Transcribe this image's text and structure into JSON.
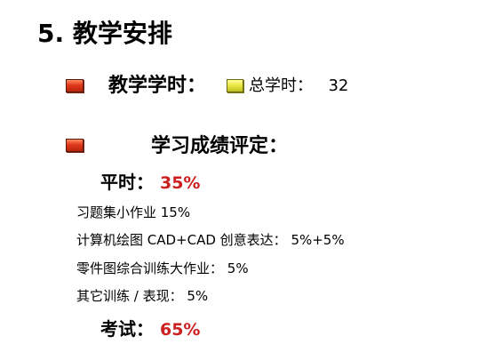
{
  "heading": "5. 教学安排",
  "hours": {
    "label": "教学学时：",
    "sub_label": "总学时：",
    "sub_value": "32"
  },
  "grading": {
    "title": "学习成绩评定：",
    "regular": {
      "label": "平时：",
      "percent": "35%",
      "items": [
        "习题集小作业 15%",
        "计算机绘图 CAD+CAD 创意表达： 5%+5%",
        "零件图综合训练大作业： 5%",
        "其它训练 / 表现： 5%"
      ]
    },
    "exam": {
      "label": "考试：",
      "percent": "65%"
    }
  },
  "colors": {
    "bullet_red": "#d83418",
    "bullet_yellow": "#e6e640",
    "percent_text": "#cc1f1f"
  }
}
